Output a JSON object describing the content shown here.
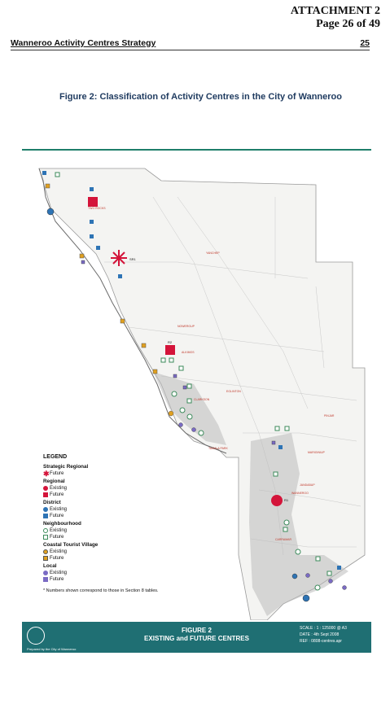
{
  "attachment": {
    "line1": "ATTACHMENT 2",
    "line2": "Page 26 of 49"
  },
  "header": {
    "title": "Wanneroo Activity Centres Strategy",
    "page": "25"
  },
  "figure_title": "Figure 2:  Classification of Activity Centres in the City of Wanneroo",
  "legend": {
    "title": "LEGEND",
    "strategic_regional": {
      "label": "Strategic Regional",
      "future": "Future"
    },
    "regional": {
      "label": "Regional",
      "existing": "Existing",
      "future": "Future"
    },
    "district": {
      "label": "District",
      "existing": "Existing",
      "future": "Future"
    },
    "neighbourhood": {
      "label": "Neighbourhood",
      "existing": "Existing",
      "future": "Future"
    },
    "coastal": {
      "label": "Coastal Tourist Village",
      "existing": "Existing",
      "future": "Future"
    },
    "local": {
      "label": "Local",
      "existing": "Existing",
      "future": "Future"
    },
    "note": "* Numbers shown correspond to those in Section 8 tables."
  },
  "footer": {
    "title1": "FIGURE 2",
    "title2": "EXISTING and FUTURE CENTRES",
    "scale": "SCALE : 1 : 125000 @ A3",
    "date": "DATE : 4th Sept 2008",
    "ref": "REF : 0808-centres.apr",
    "prepared": "Prepared by the City of Wanneroo"
  },
  "colors": {
    "regional": "#d4143a",
    "district": "#2e74b5",
    "neighbourhood": "#3b8a5a",
    "coastal": "#e0a020",
    "local": "#7a6bc4",
    "footer": "#1f6f73"
  },
  "map_labels": {
    "sr1": "SR1",
    "r2": "R2",
    "r1": "R1",
    "yanchep": "YANCHEP",
    "two_rocks": "TWO ROCKS",
    "alkimos": "ALKIMOS",
    "tamala": "TAMALA PARK",
    "wanneroo": "WANNEROO",
    "carramar": "CARRAMAR",
    "mariginiup": "MARIGINIUP",
    "jandabup": "JANDABUP",
    "nowergup": "NOWERGUP",
    "eglinton": "EGLINTON",
    "pinjar": "PINJAR",
    "clarkson": "CLARKSON"
  }
}
